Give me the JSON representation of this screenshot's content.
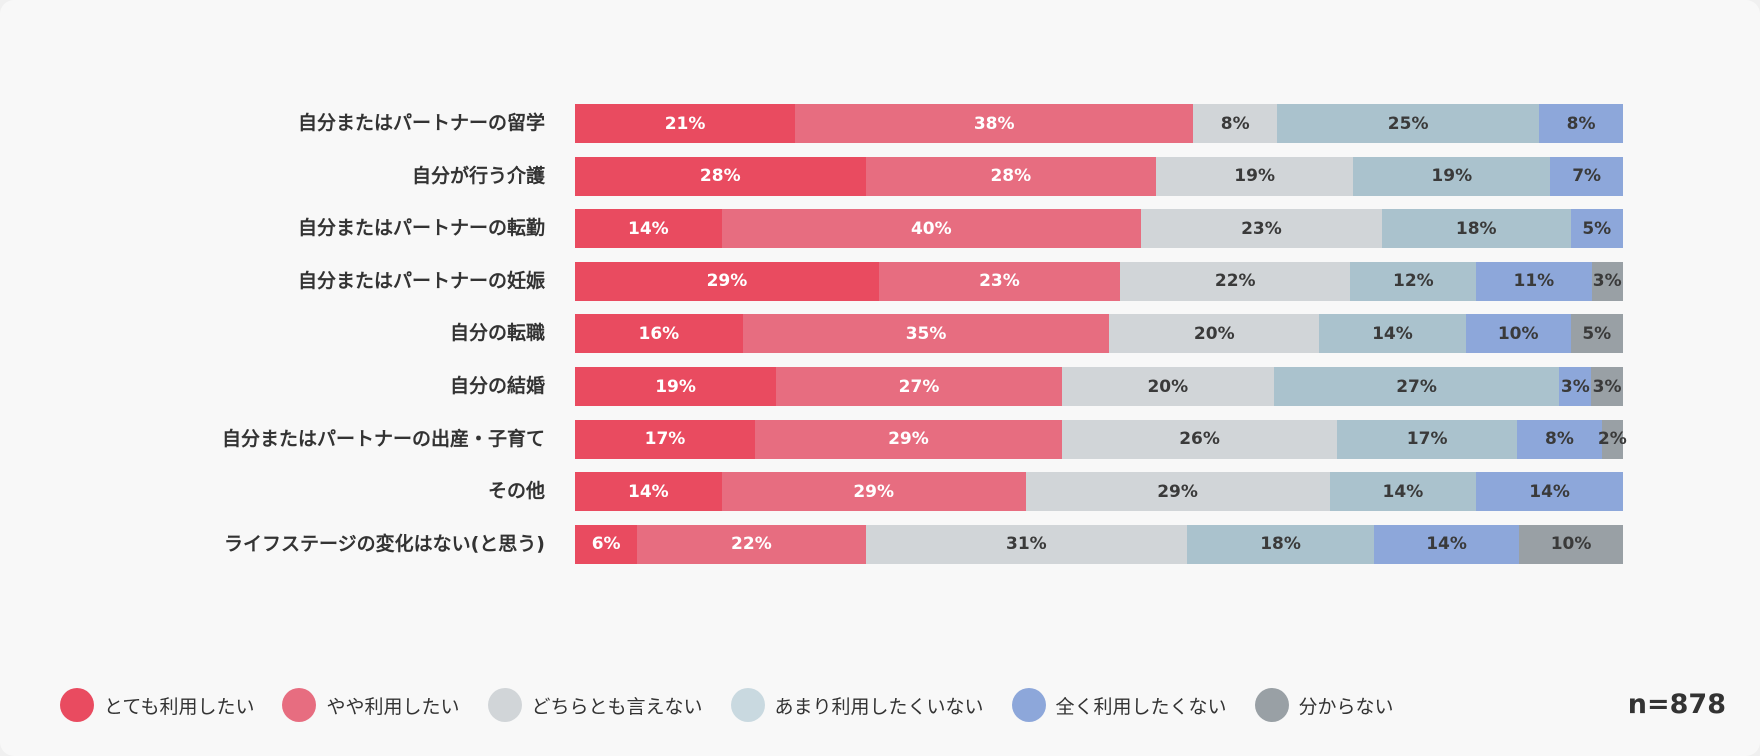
{
  "chart_data": {
    "type": "bar",
    "orientation": "horizontal-stacked-100",
    "categories": [
      "自分またはパートナーの留学",
      "自分が行う介護",
      "自分またはパートナーの転勤",
      "自分またはパートナーの妊娠",
      "自分の転職",
      "自分の結婚",
      "自分またはパートナーの出産・子育て",
      "その他",
      "ライフステージの変化はない(と思う)"
    ],
    "series": [
      {
        "name": "とても利用したい",
        "color": "#E94B60",
        "text": "#ffffff",
        "values": [
          21,
          28,
          14,
          29,
          16,
          19,
          17,
          14,
          6
        ]
      },
      {
        "name": "やや利用したい",
        "color": "#E76D80",
        "text": "#ffffff",
        "values": [
          38,
          28,
          40,
          23,
          35,
          27,
          29,
          29,
          22
        ]
      },
      {
        "name": "どちらとも言えない",
        "color": "#D1D5D8",
        "text": "#3a3a3a",
        "values": [
          8,
          19,
          23,
          22,
          20,
          20,
          26,
          29,
          31
        ]
      },
      {
        "name": "あまり利用したくいない",
        "color": "#AAC2CD",
        "legend_color": "#C9D9E0",
        "text": "#3a3a3a",
        "values": [
          25,
          19,
          18,
          12,
          14,
          27,
          17,
          14,
          18
        ]
      },
      {
        "name": "全く利用したくない",
        "color": "#8DA7DA",
        "text": "#3a3a3a",
        "values": [
          8,
          7,
          5,
          11,
          10,
          3,
          8,
          14,
          14
        ]
      },
      {
        "name": "分からない",
        "color": "#99A0A5",
        "text": "#3a3a3a",
        "values": [
          0,
          0,
          0,
          3,
          5,
          3,
          2,
          0,
          10
        ]
      }
    ],
    "legend_position": "bottom",
    "note": "n=878"
  }
}
